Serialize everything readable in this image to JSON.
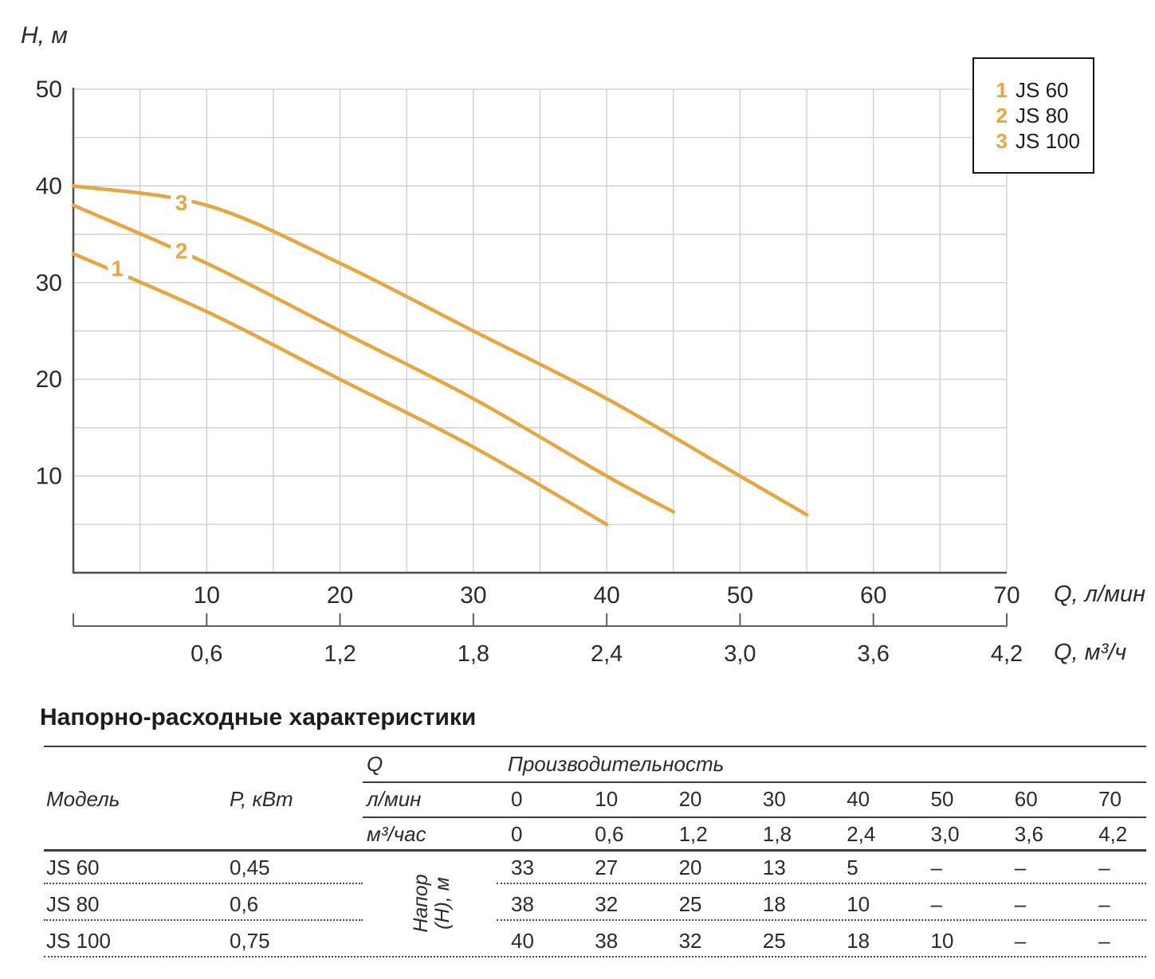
{
  "colors": {
    "accent": "#E7A63E",
    "grid": "#c9c9c9",
    "axis": "#4d4d4d",
    "ruler": "#5f5f5f",
    "text": "#2b2b2b",
    "legend_border": "#161616"
  },
  "chart_data": {
    "type": "line",
    "ylabel": "H, м",
    "xlabel_primary": "Q, л/мин",
    "xlabel_secondary": "Q, м³/ч",
    "xlim": [
      0,
      70
    ],
    "ylim": [
      0,
      50
    ],
    "grid_step": 5,
    "grid": true,
    "y_ticks": [
      50,
      40,
      30,
      20,
      10
    ],
    "x_ticks_primary": [
      10,
      20,
      30,
      40,
      50,
      60,
      70
    ],
    "x_ticks_secondary": [
      "0,6",
      "1,2",
      "1,8",
      "2,4",
      "3,0",
      "3,6",
      "4,2"
    ],
    "series": [
      {
        "num": "1",
        "name": "JS 60",
        "points": [
          [
            0,
            33
          ],
          [
            10,
            27
          ],
          [
            20,
            20
          ],
          [
            30,
            13
          ],
          [
            40,
            5
          ]
        ],
        "label_pos": [
          3.3,
          31.5
        ]
      },
      {
        "num": "2",
        "name": "JS 80",
        "points": [
          [
            0,
            38
          ],
          [
            10,
            32
          ],
          [
            20,
            25
          ],
          [
            30,
            18
          ],
          [
            40,
            10
          ],
          [
            45,
            6.3
          ]
        ],
        "label_pos": [
          8.1,
          33.3
        ]
      },
      {
        "num": "3",
        "name": "JS 100",
        "points": [
          [
            0,
            40
          ],
          [
            10,
            38
          ],
          [
            20,
            32
          ],
          [
            30,
            25
          ],
          [
            40,
            18
          ],
          [
            50,
            10
          ],
          [
            55,
            6
          ]
        ],
        "label_pos": [
          8.1,
          38.3
        ]
      }
    ],
    "legend": {
      "position": "top-right",
      "items": [
        {
          "num": "1",
          "label": "JS 60"
        },
        {
          "num": "2",
          "label": "JS 80"
        },
        {
          "num": "3",
          "label": "JS 100"
        }
      ]
    }
  },
  "table": {
    "title": "Напорно-расходные характеристики",
    "col_model": "Модель",
    "col_power": "P, кВт",
    "col_q": "Q",
    "perf_header": "Производительность",
    "unit_rows": [
      {
        "unit": "л/мин",
        "values": [
          "0",
          "10",
          "20",
          "30",
          "40",
          "50",
          "60",
          "70"
        ]
      },
      {
        "unit": "м³/час",
        "values": [
          "0",
          "0,6",
          "1,2",
          "1,8",
          "2,4",
          "3,0",
          "3,6",
          "4,2"
        ]
      }
    ],
    "rotated_label_line1": "Напор",
    "rotated_label_line2": "(H), м",
    "rows": [
      {
        "model": "JS 60",
        "power": "0,45",
        "values": [
          "33",
          "27",
          "20",
          "13",
          "5",
          "–",
          "–",
          "–"
        ]
      },
      {
        "model": "JS 80",
        "power": "0,6",
        "values": [
          "38",
          "32",
          "25",
          "18",
          "10",
          "–",
          "–",
          "–"
        ]
      },
      {
        "model": "JS 100",
        "power": "0,75",
        "values": [
          "40",
          "38",
          "32",
          "25",
          "18",
          "10",
          "–",
          "–"
        ]
      }
    ]
  }
}
